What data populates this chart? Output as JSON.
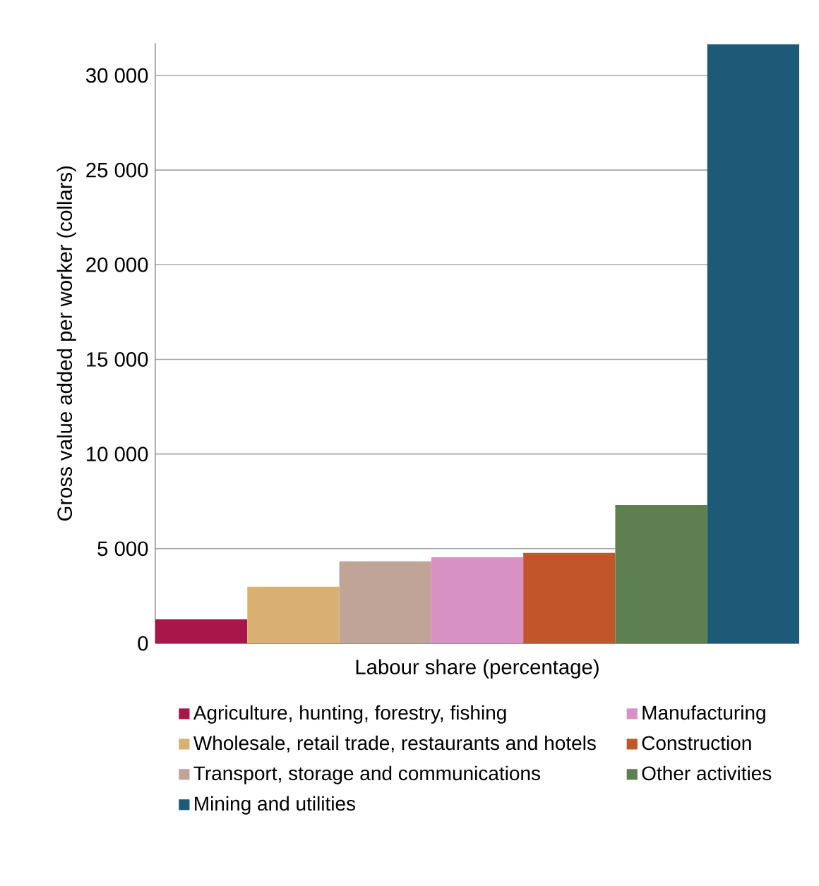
{
  "chart_data": {
    "type": "bar",
    "xlabel": "Labour share (percentage)",
    "ylabel": "Gross value added per worker (collars)",
    "categories": [
      null,
      null,
      null,
      null,
      null,
      null,
      null
    ],
    "ylim": [
      0,
      31700
    ],
    "yticks": [
      0,
      {
        "value": 5000,
        "label": "5 000"
      },
      {
        "value": 10000,
        "label": "10 000"
      },
      {
        "value": 15000,
        "label": "15 000"
      },
      {
        "value": 20000,
        "label": "20 000"
      },
      {
        "value": 25000,
        "label": "25 000"
      },
      {
        "value": 30000,
        "label": "30 000"
      }
    ],
    "stacked": true,
    "grid": "y",
    "legend": "bottom",
    "series": [
      {
        "name": "Agriculture, hunting, forestry, fishing",
        "color": "#a8174a",
        "values": [
          1270,
          null,
          null,
          null,
          null,
          null,
          null
        ]
      },
      {
        "name": "Manufacturing",
        "color": "#d891c4",
        "values": [
          null,
          null,
          null,
          4550,
          null,
          null,
          null
        ]
      },
      {
        "name": "Wholesale, retail trade, restaurants and hotels",
        "color": "#d9b071",
        "values": [
          null,
          2990,
          null,
          null,
          null,
          null,
          null
        ]
      },
      {
        "name": "Construction",
        "color": "#c0562a",
        "values": [
          null,
          null,
          null,
          null,
          4780,
          null,
          null
        ]
      },
      {
        "name": "Transport, storage and communications",
        "color": "#c0a497",
        "values": [
          null,
          null,
          4330,
          null,
          null,
          null,
          null
        ]
      },
      {
        "name": "Other activities",
        "color": "#5e7f4f",
        "values": [
          null,
          null,
          null,
          null,
          null,
          7300,
          null
        ]
      },
      {
        "name": "Mining and utilities",
        "color": "#1d5a78",
        "values": [
          null,
          null,
          null,
          null,
          null,
          null,
          31650
        ]
      }
    ]
  }
}
